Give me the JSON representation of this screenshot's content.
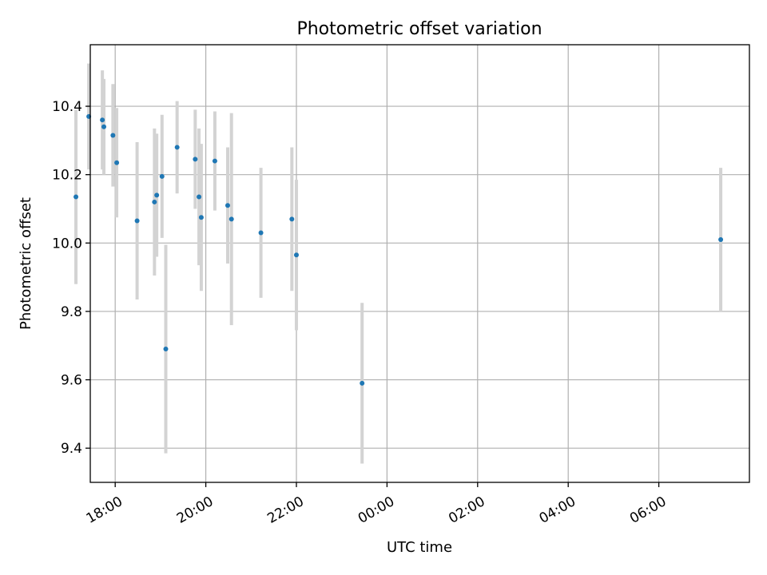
{
  "chart_data": {
    "type": "scatter",
    "title": "Photometric offset variation",
    "xlabel": "UTC time",
    "ylabel": "Photometric offset",
    "x_axis_type": "time",
    "xlim": [
      "17:27",
      "08:00"
    ],
    "ylim": [
      9.3,
      10.58
    ],
    "x_ticks": [
      "18:00",
      "20:00",
      "22:00",
      "00:00",
      "02:00",
      "04:00",
      "06:00"
    ],
    "y_ticks": [
      9.4,
      9.6,
      9.8,
      10.0,
      10.2,
      10.4
    ],
    "grid": true,
    "marker_color": "#1f77b4",
    "errorbar_color": "#d3d3d3",
    "points": [
      {
        "t": "17:08",
        "y": 10.135,
        "err": 0.255
      },
      {
        "t": "17:25",
        "y": 10.37,
        "err": 0.155
      },
      {
        "t": "17:43",
        "y": 10.36,
        "err": 0.145
      },
      {
        "t": "17:45",
        "y": 10.34,
        "err": 0.14
      },
      {
        "t": "17:57",
        "y": 10.315,
        "err": 0.15
      },
      {
        "t": "18:02",
        "y": 10.235,
        "err": 0.16
      },
      {
        "t": "18:29",
        "y": 10.065,
        "err": 0.23
      },
      {
        "t": "18:52",
        "y": 10.12,
        "err": 0.215
      },
      {
        "t": "18:55",
        "y": 10.14,
        "err": 0.18
      },
      {
        "t": "19:02",
        "y": 10.195,
        "err": 0.18
      },
      {
        "t": "19:07",
        "y": 9.69,
        "err": 0.305
      },
      {
        "t": "19:22",
        "y": 10.28,
        "err": 0.135
      },
      {
        "t": "19:46",
        "y": 10.245,
        "err": 0.145
      },
      {
        "t": "19:51",
        "y": 10.135,
        "err": 0.2
      },
      {
        "t": "19:54",
        "y": 10.075,
        "err": 0.215
      },
      {
        "t": "20:12",
        "y": 10.24,
        "err": 0.145
      },
      {
        "t": "20:29",
        "y": 10.11,
        "err": 0.17
      },
      {
        "t": "20:34",
        "y": 10.07,
        "err": 0.31
      },
      {
        "t": "21:13",
        "y": 10.03,
        "err": 0.19
      },
      {
        "t": "21:54",
        "y": 10.07,
        "err": 0.21
      },
      {
        "t": "22:00",
        "y": 9.965,
        "err": 0.22
      },
      {
        "t": "23:27",
        "y": 9.59,
        "err": 0.235
      },
      {
        "t": "07:22",
        "y": 10.01,
        "err": 0.21
      }
    ]
  }
}
